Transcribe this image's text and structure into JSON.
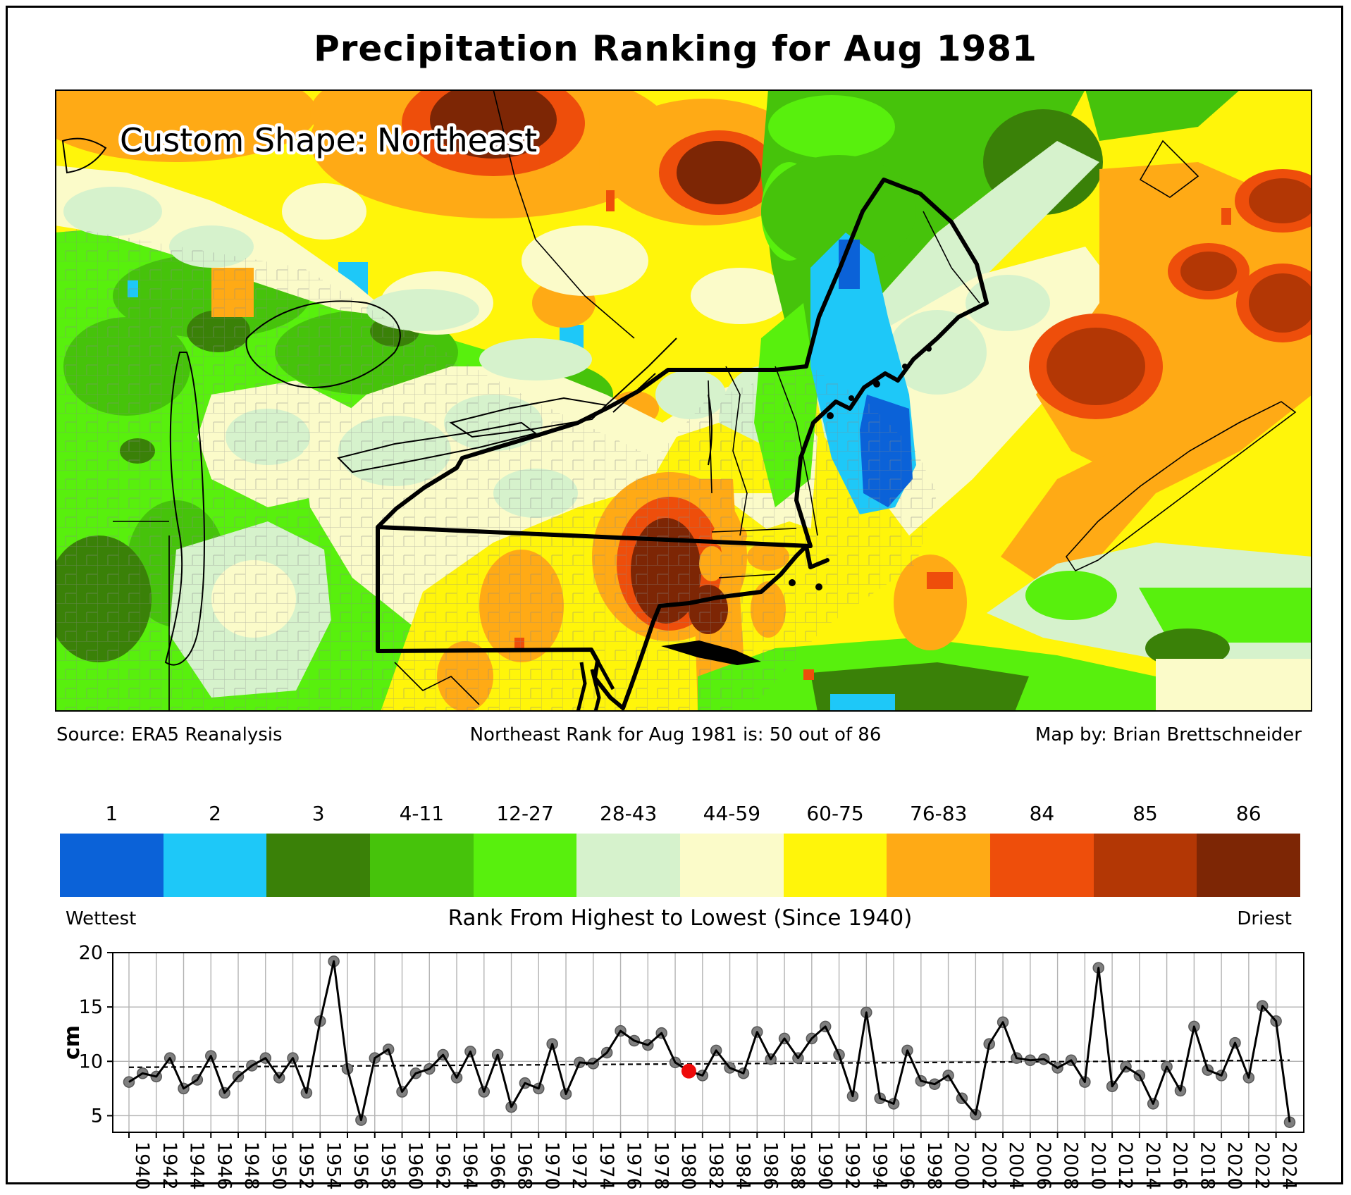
{
  "title": "Precipitation Ranking for Aug 1981",
  "map": {
    "overlay_label": "Custom Shape: Northeast",
    "source": "Source: ERA5 Reanalysis",
    "rank_text": "Northeast Rank for Aug 1981 is: 50 out of 86",
    "credit": "Map by: Brian Brettschneider"
  },
  "legend": {
    "left_label": "Wettest",
    "right_label": "Driest",
    "caption": "Rank From Highest to Lowest (Since 1940)",
    "categories": [
      {
        "label": "1",
        "color": "#0b62d8"
      },
      {
        "label": "2",
        "color": "#1ec8f8"
      },
      {
        "label": "3",
        "color": "#3a8108"
      },
      {
        "label": "4-11",
        "color": "#46c30b"
      },
      {
        "label": "12-27",
        "color": "#58f00d"
      },
      {
        "label": "28-43",
        "color": "#d6f2cc"
      },
      {
        "label": "44-59",
        "color": "#fbfbc9"
      },
      {
        "label": "60-75",
        "color": "#fff50a"
      },
      {
        "label": "76-83",
        "color": "#ffaa15"
      },
      {
        "label": "84",
        "color": "#ee4e0b"
      },
      {
        "label": "85",
        "color": "#b33705"
      },
      {
        "label": "86",
        "color": "#7d2605"
      }
    ]
  },
  "chart_data": {
    "type": "line",
    "title": "",
    "xlabel": "",
    "ylabel": "cm",
    "ylim": [
      3.45,
      20
    ],
    "yticks": [
      5,
      10,
      15,
      20
    ],
    "x_start": 1940,
    "x_end": 2025,
    "xtick_step": 2,
    "grid": true,
    "marker_color": "#7f7f7f",
    "line_color": "#000000",
    "highlight_year": 1981,
    "highlight_color": "#ee0a0a",
    "trend": {
      "start": 9.45,
      "end": 10.1
    },
    "values": [
      8.1,
      8.9,
      8.6,
      10.3,
      7.5,
      8.3,
      10.5,
      7.1,
      8.6,
      9.6,
      10.3,
      8.5,
      10.3,
      7.1,
      13.7,
      19.2,
      9.3,
      4.6,
      10.3,
      11.1,
      7.2,
      8.9,
      9.3,
      10.6,
      8.5,
      10.9,
      7.2,
      10.6,
      5.8,
      8.0,
      7.5,
      11.6,
      7.0,
      9.9,
      9.8,
      10.8,
      12.8,
      11.9,
      11.5,
      12.6,
      9.9,
      9.1,
      8.7,
      11.0,
      9.4,
      8.9,
      12.7,
      10.2,
      12.1,
      10.3,
      12.1,
      13.2,
      10.6,
      6.8,
      14.5,
      6.6,
      6.1,
      11.0,
      8.2,
      7.9,
      8.7,
      6.6,
      5.1,
      11.6,
      13.6,
      10.3,
      10.1,
      10.2,
      9.4,
      10.1,
      8.1,
      18.6,
      7.7,
      9.5,
      8.7,
      6.1,
      9.5,
      7.3,
      13.2,
      9.2,
      8.7,
      11.7,
      8.5,
      15.1,
      13.7,
      4.4
    ]
  }
}
